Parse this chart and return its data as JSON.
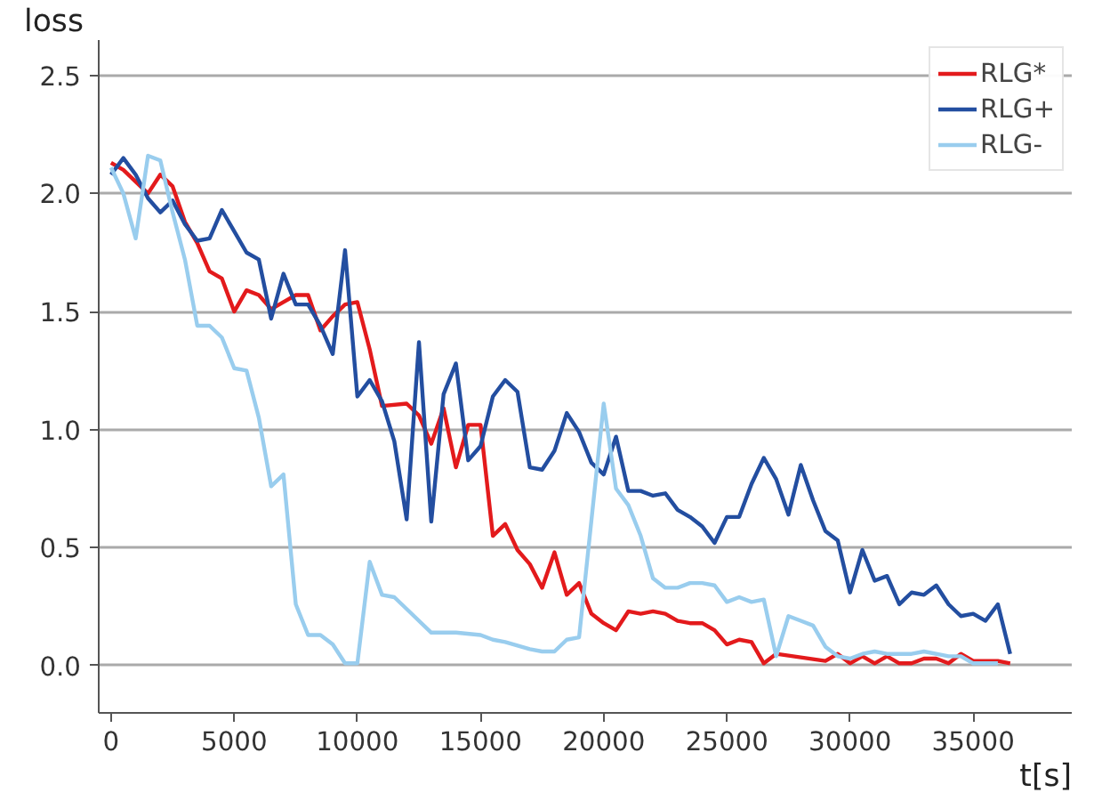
{
  "chart_data": {
    "type": "line",
    "xlabel": "t[s]",
    "ylabel": "loss",
    "xlim": [
      -500,
      39000
    ],
    "ylim": [
      -0.2,
      2.65
    ],
    "xticks": [
      0,
      5000,
      10000,
      15000,
      20000,
      25000,
      30000,
      35000
    ],
    "yticks": [
      {
        "value": 0,
        "label": "0.0"
      },
      {
        "value": 0.5,
        "label": "0.5"
      },
      {
        "value": 1,
        "label": "1.0"
      },
      {
        "value": 1.5,
        "label": "1.5"
      },
      {
        "value": 2,
        "label": "2.0"
      },
      {
        "value": 2.5,
        "label": "2.5"
      }
    ],
    "grid": "y",
    "legend": "top right",
    "line_style": "solid",
    "series": [
      {
        "name": "RLG*",
        "color": "#e31a1c",
        "x": [
          0,
          500,
          1000,
          1500,
          2000,
          2500,
          3000,
          3500,
          4000,
          4500,
          5000,
          5500,
          6000,
          6500,
          7000,
          7500,
          8000,
          8500,
          9000,
          9500,
          10000,
          10500,
          11000,
          12000,
          12500,
          13000,
          13500,
          14000,
          14500,
          15000,
          15500,
          16000,
          16500,
          17000,
          17500,
          18000,
          18500,
          19000,
          19500,
          20000,
          20500,
          21000,
          21500,
          22000,
          22500,
          23000,
          23500,
          24000,
          24500,
          25000,
          25500,
          26000,
          26500,
          27000,
          29000,
          29500,
          30000,
          30500,
          31000,
          31500,
          32000,
          32500,
          33000,
          33500,
          34000,
          34500,
          35000,
          36000,
          36500
        ],
        "values": [
          2.13,
          2.1,
          2.05,
          2.0,
          2.08,
          2.03,
          1.88,
          1.79,
          1.67,
          1.64,
          1.5,
          1.59,
          1.57,
          1.51,
          1.54,
          1.57,
          1.57,
          1.42,
          1.48,
          1.53,
          1.54,
          1.34,
          1.1,
          1.11,
          1.06,
          0.94,
          1.09,
          0.84,
          1.02,
          1.02,
          0.55,
          0.6,
          0.49,
          0.43,
          0.33,
          0.48,
          0.3,
          0.35,
          0.22,
          0.18,
          0.15,
          0.23,
          0.22,
          0.23,
          0.22,
          0.19,
          0.18,
          0.18,
          0.15,
          0.09,
          0.11,
          0.1,
          0.01,
          0.05,
          0.02,
          0.05,
          0.01,
          0.04,
          0.01,
          0.04,
          0.01,
          0.01,
          0.03,
          0.03,
          0.01,
          0.05,
          0.02,
          0.02,
          0.01
        ]
      },
      {
        "name": "RLG+",
        "color": "#234ea0",
        "x": [
          0,
          500,
          1000,
          1500,
          2000,
          2500,
          3000,
          3500,
          4000,
          4500,
          5000,
          5500,
          6000,
          6500,
          7000,
          7500,
          8000,
          8500,
          9000,
          9500,
          10000,
          10500,
          11000,
          11500,
          12000,
          12500,
          13000,
          13500,
          14000,
          14500,
          15000,
          15500,
          16000,
          16500,
          17000,
          17500,
          18000,
          18500,
          19000,
          19500,
          20000,
          20500,
          21000,
          21500,
          22000,
          22500,
          23000,
          23500,
          24000,
          24500,
          25000,
          25500,
          26000,
          26500,
          27000,
          27500,
          28000,
          28500,
          29000,
          29500,
          30000,
          30500,
          31000,
          31500,
          32000,
          32500,
          33000,
          33500,
          34000,
          34500,
          35000,
          35500,
          36000,
          36500
        ],
        "values": [
          2.08,
          2.15,
          2.08,
          1.98,
          1.92,
          1.97,
          1.87,
          1.8,
          1.81,
          1.93,
          1.84,
          1.75,
          1.72,
          1.47,
          1.66,
          1.53,
          1.53,
          1.44,
          1.32,
          1.76,
          1.14,
          1.21,
          1.12,
          0.95,
          0.62,
          1.37,
          0.61,
          1.15,
          1.28,
          0.87,
          0.93,
          1.14,
          1.21,
          1.16,
          0.84,
          0.83,
          0.91,
          1.07,
          0.99,
          0.86,
          0.81,
          0.97,
          0.74,
          0.74,
          0.72,
          0.73,
          0.66,
          0.63,
          0.59,
          0.52,
          0.63,
          0.63,
          0.77,
          0.88,
          0.79,
          0.64,
          0.85,
          0.7,
          0.57,
          0.53,
          0.31,
          0.49,
          0.36,
          0.38,
          0.26,
          0.31,
          0.3,
          0.34,
          0.26,
          0.21,
          0.22,
          0.19,
          0.26,
          0.05
        ]
      },
      {
        "name": "RLG-",
        "color": "#99cdee",
        "x": [
          0,
          500,
          1000,
          1500,
          2000,
          2500,
          3000,
          3500,
          4000,
          4500,
          5000,
          5500,
          6000,
          6500,
          7000,
          7500,
          8000,
          8500,
          9000,
          9500,
          10000,
          10500,
          11000,
          11500,
          12000,
          13000,
          14000,
          15000,
          15500,
          16000,
          17000,
          17500,
          18000,
          18500,
          19000,
          20000,
          20500,
          21000,
          21500,
          22000,
          22500,
          23000,
          23500,
          24000,
          24500,
          25000,
          25500,
          26000,
          26500,
          27000,
          27500,
          28000,
          28500,
          29000,
          29500,
          30000,
          30500,
          31000,
          31500,
          32000,
          32500,
          33000,
          34000,
          34500,
          35000,
          36000
        ],
        "values": [
          2.11,
          2.0,
          1.81,
          2.16,
          2.14,
          1.92,
          1.72,
          1.44,
          1.44,
          1.39,
          1.26,
          1.25,
          1.05,
          0.76,
          0.81,
          0.26,
          0.13,
          0.13,
          0.09,
          0.01,
          0.01,
          0.44,
          0.3,
          0.29,
          0.24,
          0.14,
          0.14,
          0.13,
          0.11,
          0.1,
          0.07,
          0.06,
          0.06,
          0.11,
          0.12,
          1.11,
          0.75,
          0.68,
          0.55,
          0.37,
          0.33,
          0.33,
          0.35,
          0.35,
          0.34,
          0.27,
          0.29,
          0.27,
          0.28,
          0.04,
          0.21,
          0.19,
          0.17,
          0.08,
          0.04,
          0.03,
          0.05,
          0.06,
          0.05,
          0.05,
          0.05,
          0.06,
          0.04,
          0.04,
          0.01,
          0.01
        ]
      }
    ]
  }
}
